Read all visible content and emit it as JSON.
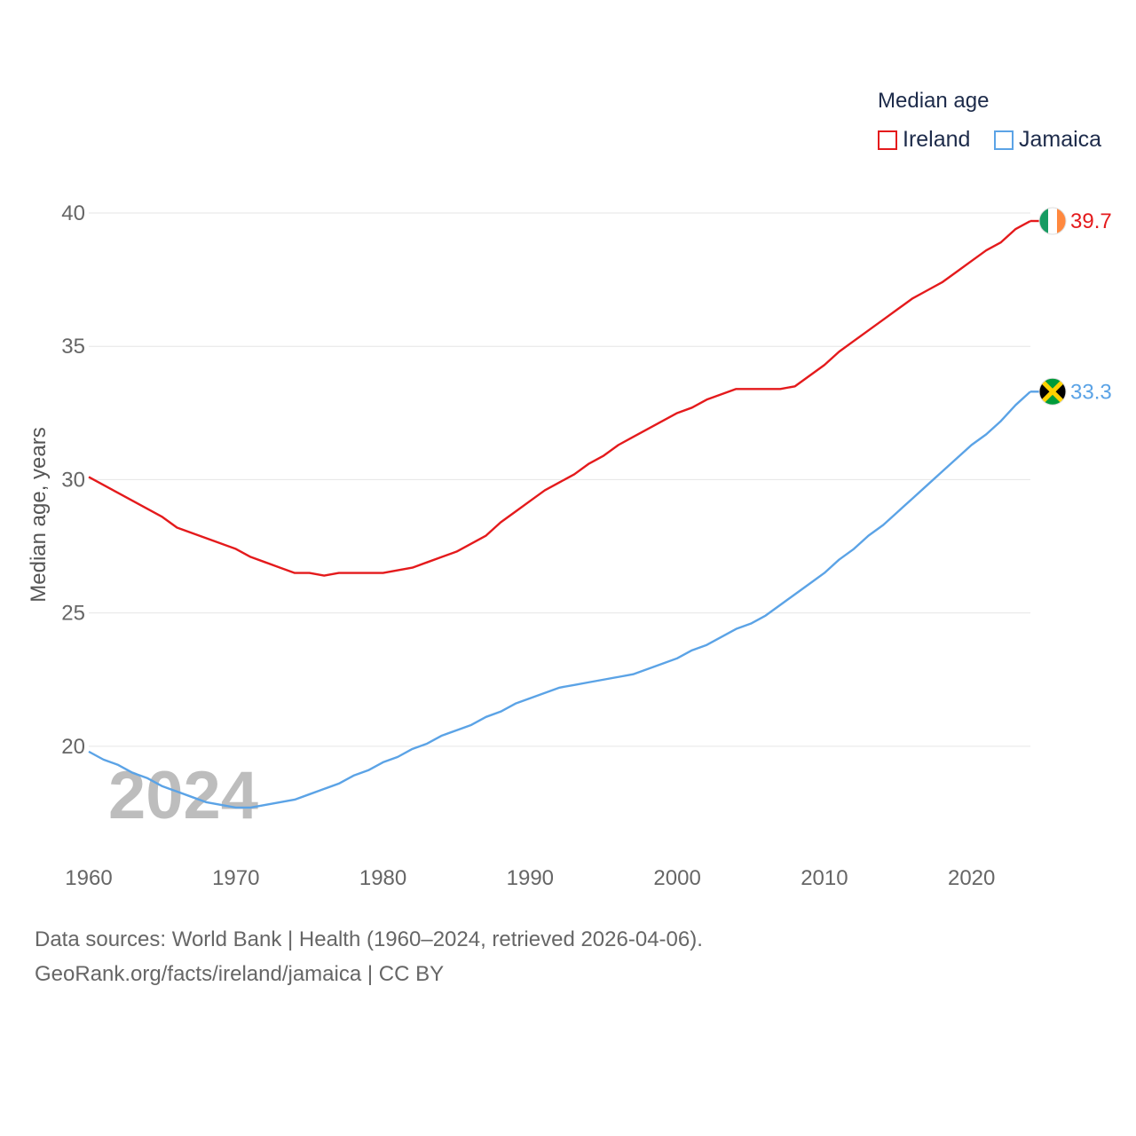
{
  "chart_data": {
    "type": "line",
    "title": "",
    "xlabel": "",
    "ylabel": "Median age, years",
    "xlim": [
      1960,
      2024
    ],
    "ylim": [
      16.7,
      40
    ],
    "yticks": [
      20,
      25,
      30,
      35,
      40
    ],
    "xticks": [
      1960,
      1970,
      1980,
      1990,
      2000,
      2010,
      2020
    ],
    "grid": true,
    "year_watermark": "2024",
    "legend": {
      "title": "Median age",
      "position": "top-right"
    },
    "series": [
      {
        "name": "Ireland",
        "color": "#e41a1c",
        "end_label": "39.7",
        "flag": "ireland-flag-icon",
        "x": [
          1960,
          1961,
          1962,
          1963,
          1964,
          1965,
          1966,
          1967,
          1968,
          1969,
          1970,
          1971,
          1972,
          1973,
          1974,
          1975,
          1976,
          1977,
          1978,
          1979,
          1980,
          1981,
          1982,
          1983,
          1984,
          1985,
          1986,
          1987,
          1988,
          1989,
          1990,
          1991,
          1992,
          1993,
          1994,
          1995,
          1996,
          1997,
          1998,
          1999,
          2000,
          2001,
          2002,
          2003,
          2004,
          2005,
          2006,
          2007,
          2008,
          2009,
          2010,
          2011,
          2012,
          2013,
          2014,
          2015,
          2016,
          2017,
          2018,
          2019,
          2020,
          2021,
          2022,
          2023,
          2024
        ],
        "values": [
          30.1,
          29.8,
          29.5,
          29.2,
          28.9,
          28.6,
          28.2,
          28.0,
          27.8,
          27.6,
          27.4,
          27.1,
          26.9,
          26.7,
          26.5,
          26.5,
          26.4,
          26.5,
          26.5,
          26.5,
          26.5,
          26.6,
          26.7,
          26.9,
          27.1,
          27.3,
          27.6,
          27.9,
          28.4,
          28.8,
          29.2,
          29.6,
          29.9,
          30.2,
          30.6,
          30.9,
          31.3,
          31.6,
          31.9,
          32.2,
          32.5,
          32.7,
          33.0,
          33.2,
          33.4,
          33.4,
          33.4,
          33.4,
          33.5,
          33.9,
          34.3,
          34.8,
          35.2,
          35.6,
          36.0,
          36.4,
          36.8,
          37.1,
          37.4,
          37.8,
          38.2,
          38.6,
          38.9,
          39.4,
          39.7
        ]
      },
      {
        "name": "Jamaica",
        "color": "#5ba3e6",
        "end_label": "33.3",
        "flag": "jamaica-flag-icon",
        "x": [
          1960,
          1961,
          1962,
          1963,
          1964,
          1965,
          1966,
          1967,
          1968,
          1969,
          1970,
          1971,
          1972,
          1973,
          1974,
          1975,
          1976,
          1977,
          1978,
          1979,
          1980,
          1981,
          1982,
          1983,
          1984,
          1985,
          1986,
          1987,
          1988,
          1989,
          1990,
          1991,
          1992,
          1993,
          1994,
          1995,
          1996,
          1997,
          1998,
          1999,
          2000,
          2001,
          2002,
          2003,
          2004,
          2005,
          2006,
          2007,
          2008,
          2009,
          2010,
          2011,
          2012,
          2013,
          2014,
          2015,
          2016,
          2017,
          2018,
          2019,
          2020,
          2021,
          2022,
          2023,
          2024
        ],
        "values": [
          19.8,
          19.5,
          19.3,
          19.0,
          18.8,
          18.5,
          18.3,
          18.1,
          17.9,
          17.8,
          17.7,
          17.7,
          17.8,
          17.9,
          18.0,
          18.2,
          18.4,
          18.6,
          18.9,
          19.1,
          19.4,
          19.6,
          19.9,
          20.1,
          20.4,
          20.6,
          20.8,
          21.1,
          21.3,
          21.6,
          21.8,
          22.0,
          22.2,
          22.3,
          22.4,
          22.5,
          22.6,
          22.7,
          22.9,
          23.1,
          23.3,
          23.6,
          23.8,
          24.1,
          24.4,
          24.6,
          24.9,
          25.3,
          25.7,
          26.1,
          26.5,
          27.0,
          27.4,
          27.9,
          28.3,
          28.8,
          29.3,
          29.8,
          30.3,
          30.8,
          31.3,
          31.7,
          32.2,
          32.8,
          33.3
        ]
      }
    ]
  },
  "footer": {
    "sources": "Data sources: World Bank | Health (1960–2024, retrieved 2026-04-06).",
    "credit": "GeoRank.org/facts/ireland/jamaica | CC BY"
  }
}
